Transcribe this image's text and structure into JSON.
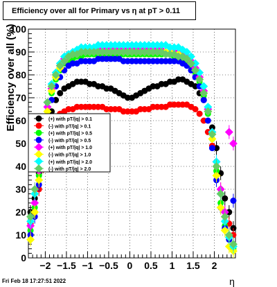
{
  "title": "Efficiency over all for Primary vs    η at pT > 0.11",
  "timestamp": "Fri Feb 18 17:27:51 2022",
  "chart_data": {
    "type": "scatter",
    "title": "Efficiency over all for Primary vs    η at pT > 0.11",
    "xlabel": "η",
    "ylabel": "Efficiency over all (%)",
    "xlim": [
      -2.4,
      2.5
    ],
    "ylim": [
      0,
      100
    ],
    "xticks": [
      "−2",
      "−1.5",
      "−1",
      "−0.5",
      "0",
      "0.5",
      "1",
      "1.5",
      "2"
    ],
    "yticks": [
      "0",
      "10",
      "20",
      "30",
      "40",
      "50",
      "60",
      "70",
      "80",
      "90",
      "100"
    ],
    "grid": true,
    "legend_position": "middle-left",
    "series": [
      {
        "name": "(+) with pT/|q| > 0.1",
        "color": "#000000",
        "marker": "circle",
        "x": [
          -2.35,
          -2.25,
          -2.15,
          -2.05,
          -1.95,
          -1.85,
          -1.75,
          -1.65,
          -1.55,
          -1.45,
          -1.35,
          -1.25,
          -1.15,
          -1.05,
          -0.95,
          -0.85,
          -0.75,
          -0.65,
          -0.55,
          -0.45,
          -0.35,
          -0.25,
          -0.15,
          -0.05,
          0.05,
          0.15,
          0.25,
          0.35,
          0.45,
          0.55,
          0.65,
          0.75,
          0.85,
          0.95,
          1.05,
          1.15,
          1.25,
          1.35,
          1.45,
          1.55,
          1.65,
          1.75,
          1.85,
          1.95,
          2.05,
          2.15,
          2.25,
          2.35,
          2.45
        ],
        "y": [
          20,
          26,
          37,
          48,
          57,
          64,
          69,
          72,
          74,
          75,
          76,
          77,
          77,
          77,
          76,
          76,
          75,
          75,
          74,
          74,
          73,
          72,
          71,
          70,
          70,
          71,
          72,
          73,
          74,
          75,
          75,
          76,
          76,
          77,
          77,
          78,
          78,
          77,
          76,
          75,
          72,
          69,
          64,
          57,
          48,
          37,
          26,
          20,
          13
        ]
      },
      {
        "name": "(-) with pT/|q| > 0.1",
        "color": "#ff0000",
        "marker": "circle",
        "x": [
          -2.35,
          -2.25,
          -2.15,
          -2.05,
          -1.95,
          -1.85,
          -1.75,
          -1.65,
          -1.55,
          -1.45,
          -1.35,
          -1.25,
          -1.15,
          -1.05,
          -0.95,
          -0.85,
          -0.75,
          -0.65,
          -0.55,
          -0.45,
          -0.35,
          -0.25,
          -0.15,
          -0.05,
          0.05,
          0.15,
          0.25,
          0.35,
          0.45,
          0.55,
          0.65,
          0.75,
          0.85,
          0.95,
          1.05,
          1.15,
          1.25,
          1.35,
          1.45,
          1.55,
          1.65,
          1.75,
          1.85,
          1.95,
          2.05,
          2.15,
          2.25,
          2.35,
          2.45
        ],
        "y": [
          15,
          20,
          30,
          40,
          50,
          57,
          61,
          63,
          64,
          65,
          65,
          66,
          66,
          66,
          66,
          66,
          66,
          66,
          65,
          65,
          65,
          65,
          64,
          64,
          64,
          64,
          65,
          65,
          65,
          66,
          66,
          66,
          66,
          67,
          67,
          67,
          67,
          67,
          66,
          65,
          63,
          60,
          55,
          49,
          40,
          30,
          20,
          15,
          10
        ]
      },
      {
        "name": "(+) with pT/|q| > 0.5",
        "color": "#00ff00",
        "marker": "circle",
        "x": [
          -2.35,
          -2.25,
          -2.15,
          -2.05,
          -1.95,
          -1.85,
          -1.75,
          -1.65,
          -1.55,
          -1.45,
          -1.35,
          -1.25,
          -1.15,
          -1.05,
          -0.95,
          -0.85,
          -0.75,
          -0.65,
          -0.55,
          -0.45,
          -0.35,
          -0.25,
          -0.15,
          -0.05,
          0.05,
          0.15,
          0.25,
          0.35,
          0.45,
          0.55,
          0.65,
          0.75,
          0.85,
          0.95,
          1.05,
          1.15,
          1.25,
          1.35,
          1.45,
          1.55,
          1.65,
          1.75,
          1.85,
          1.95,
          2.05,
          2.15,
          2.25,
          2.35,
          2.45
        ],
        "y": [
          12,
          22,
          36,
          52,
          64,
          72,
          78,
          82,
          85,
          86,
          87,
          88,
          88,
          89,
          89,
          89,
          89,
          89,
          89,
          89,
          89,
          89,
          89,
          89,
          89,
          89,
          89,
          89,
          89,
          89,
          89,
          89,
          89,
          89,
          88,
          88,
          87,
          86,
          84,
          81,
          77,
          71,
          63,
          52,
          38,
          24,
          14,
          8,
          4
        ]
      },
      {
        "name": "(-) with pT/|q| > 0.5",
        "color": "#0000ff",
        "marker": "circle",
        "x": [
          -2.35,
          -2.25,
          -2.15,
          -2.05,
          -1.95,
          -1.85,
          -1.75,
          -1.65,
          -1.55,
          -1.45,
          -1.35,
          -1.25,
          -1.15,
          -1.05,
          -0.95,
          -0.85,
          -0.75,
          -0.65,
          -0.55,
          -0.45,
          -0.35,
          -0.25,
          -0.15,
          -0.05,
          0.05,
          0.15,
          0.25,
          0.35,
          0.45,
          0.55,
          0.65,
          0.75,
          0.85,
          0.95,
          1.05,
          1.15,
          1.25,
          1.35,
          1.45,
          1.55,
          1.65,
          1.75,
          1.85,
          1.95,
          2.05,
          2.15,
          2.25,
          2.35,
          2.45
        ],
        "y": [
          10,
          18,
          32,
          48,
          60,
          69,
          75,
          79,
          82,
          84,
          85,
          85,
          86,
          86,
          86,
          86,
          87,
          87,
          87,
          87,
          87,
          87,
          86,
          86,
          86,
          86,
          86,
          86,
          86,
          86,
          86,
          86,
          86,
          86,
          86,
          86,
          85,
          84,
          82,
          79,
          75,
          69,
          60,
          48,
          34,
          22,
          13,
          8,
          25
        ]
      },
      {
        "name": "(+) with pT/|q| > 1.0",
        "color": "#ff00ff",
        "marker": "diamond",
        "x": [
          -2.35,
          -2.25,
          -2.15,
          -2.05,
          -1.95,
          -1.85,
          -1.75,
          -1.65,
          -1.55,
          -1.45,
          -1.35,
          -1.25,
          -1.15,
          -1.05,
          -0.95,
          -0.85,
          -0.75,
          -0.65,
          -0.55,
          -0.45,
          -0.35,
          -0.25,
          -0.15,
          -0.05,
          0.05,
          0.15,
          0.25,
          0.35,
          0.45,
          0.55,
          0.65,
          0.75,
          0.85,
          0.95,
          1.05,
          1.15,
          1.25,
          1.35,
          1.45,
          1.55,
          1.65,
          1.75,
          1.85,
          1.95,
          2.05,
          2.15,
          2.25,
          2.35,
          2.45
        ],
        "y": [
          14,
          24,
          38,
          54,
          66,
          74,
          80,
          84,
          87,
          88,
          89,
          90,
          90,
          90,
          90,
          91,
          91,
          91,
          91,
          91,
          91,
          91,
          91,
          91,
          91,
          91,
          91,
          91,
          91,
          91,
          91,
          91,
          90,
          90,
          90,
          90,
          89,
          88,
          86,
          83,
          79,
          73,
          65,
          55,
          42,
          30,
          20,
          55,
          50
        ]
      },
      {
        "name": "(-) with pT/|q| > 1.0",
        "color": "#ffff00",
        "marker": "diamond",
        "x": [
          -2.35,
          -2.25,
          -2.15,
          -2.05,
          -1.95,
          -1.85,
          -1.75,
          -1.65,
          -1.55,
          -1.45,
          -1.35,
          -1.25,
          -1.15,
          -1.05,
          -0.95,
          -0.85,
          -0.75,
          -0.65,
          -0.55,
          -0.45,
          -0.35,
          -0.25,
          -0.15,
          -0.05,
          0.05,
          0.15,
          0.25,
          0.35,
          0.45,
          0.55,
          0.65,
          0.75,
          0.85,
          0.95,
          1.05,
          1.15,
          1.25,
          1.35,
          1.45,
          1.55,
          1.65,
          1.75,
          1.85,
          1.95,
          2.05,
          2.15,
          2.25,
          2.35,
          2.45
        ],
        "y": [
          8,
          20,
          34,
          52,
          64,
          73,
          79,
          83,
          86,
          88,
          89,
          89,
          90,
          90,
          90,
          90,
          90,
          90,
          90,
          90,
          90,
          90,
          90,
          90,
          90,
          90,
          90,
          90,
          90,
          90,
          90,
          90,
          90,
          90,
          89,
          89,
          88,
          87,
          85,
          82,
          78,
          72,
          64,
          52,
          36,
          22,
          12,
          5,
          3
        ]
      },
      {
        "name": "(+) with pT/|q| > 2.0",
        "color": "#00ffff",
        "marker": "diamond",
        "x": [
          -2.35,
          -2.25,
          -2.15,
          -2.05,
          -1.95,
          -1.85,
          -1.75,
          -1.65,
          -1.55,
          -1.45,
          -1.35,
          -1.25,
          -1.15,
          -1.05,
          -0.95,
          -0.85,
          -0.75,
          -0.65,
          -0.55,
          -0.45,
          -0.35,
          -0.25,
          -0.15,
          -0.05,
          0.05,
          0.15,
          0.25,
          0.35,
          0.45,
          0.55,
          0.65,
          0.75,
          0.85,
          0.95,
          1.05,
          1.15,
          1.25,
          1.35,
          1.45,
          1.55,
          1.65,
          1.75,
          1.85,
          1.95,
          2.05,
          2.15,
          2.25,
          2.35,
          2.45
        ],
        "y": [
          16,
          28,
          42,
          57,
          68,
          76,
          81,
          85,
          88,
          89,
          90,
          91,
          92,
          92,
          92,
          92,
          93,
          93,
          93,
          93,
          93,
          93,
          93,
          93,
          93,
          93,
          93,
          93,
          93,
          93,
          93,
          93,
          93,
          92,
          92,
          92,
          91,
          90,
          88,
          85,
          81,
          75,
          66,
          55,
          42,
          28,
          16,
          9,
          5
        ]
      },
      {
        "name": "(-) with pT/|q| > 2.0",
        "color": "#66cc66",
        "marker": "diamond",
        "x": [
          -2.35,
          -2.25,
          -2.15,
          -2.05,
          -1.95,
          -1.85,
          -1.75,
          -1.65,
          -1.55,
          -1.45,
          -1.35,
          -1.25,
          -1.15,
          -1.05,
          -0.95,
          -0.85,
          -0.75,
          -0.65,
          -0.55,
          -0.45,
          -0.35,
          -0.25,
          -0.15,
          -0.05,
          0.05,
          0.15,
          0.25,
          0.35,
          0.45,
          0.55,
          0.65,
          0.75,
          0.85,
          0.95,
          1.05,
          1.15,
          1.25,
          1.35,
          1.45,
          1.55,
          1.65,
          1.75,
          1.85,
          1.95,
          2.05,
          2.15,
          2.25,
          2.35,
          2.45
        ],
        "y": [
          18,
          30,
          44,
          58,
          68,
          75,
          80,
          84,
          86,
          88,
          89,
          89,
          90,
          90,
          90,
          90,
          90,
          90,
          90,
          90,
          90,
          90,
          90,
          90,
          90,
          90,
          90,
          90,
          90,
          90,
          90,
          90,
          89,
          89,
          89,
          88,
          88,
          87,
          85,
          82,
          78,
          72,
          64,
          54,
          40,
          28,
          18,
          10,
          6
        ]
      }
    ]
  }
}
